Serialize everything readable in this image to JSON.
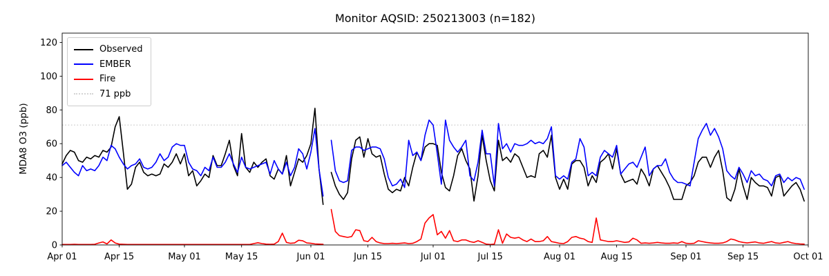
{
  "figure": {
    "title": "Monitor AQSID: 250213003 (n=182)",
    "ylabel": "MDA8 O3 (ppb)",
    "background": "#ffffff"
  },
  "legend": {
    "position": "upper-left",
    "items": [
      {
        "label": "Observed",
        "color": "#000000",
        "style": "solid"
      },
      {
        "label": "EMBER",
        "color": "#0000ff",
        "style": "solid"
      },
      {
        "label": "Fire",
        "color": "#ff0000",
        "style": "solid"
      },
      {
        "label": "71 ppb",
        "color": "#d3d3d3",
        "style": "dotted"
      }
    ]
  },
  "chart_data": {
    "type": "line",
    "title": "Monitor AQSID: 250213003 (n=182)",
    "xlabel": "",
    "ylabel": "MDA8 O3 (ppb)",
    "ylim": [
      0,
      125.5
    ],
    "yticks": [
      0,
      20,
      40,
      60,
      80,
      100,
      120
    ],
    "grid": false,
    "legend_position": "upper left",
    "x_axis": {
      "unit": "day",
      "n_days": 183,
      "start_label": "Apr 01",
      "end_label": "Oct 01",
      "note": "daily values Apr 01 - Sep 30; Jun 05 missing, giving n=182 points and a visible line gap"
    },
    "xticks": [
      {
        "day": 0,
        "label": "Apr 01"
      },
      {
        "day": 14,
        "label": "Apr 15"
      },
      {
        "day": 30,
        "label": "May 01"
      },
      {
        "day": 44,
        "label": "May 15"
      },
      {
        "day": 61,
        "label": "Jun 01"
      },
      {
        "day": 75,
        "label": "Jun 15"
      },
      {
        "day": 91,
        "label": "Jul 01"
      },
      {
        "day": 105,
        "label": "Jul 15"
      },
      {
        "day": 122,
        "label": "Aug 01"
      },
      {
        "day": 136,
        "label": "Aug 15"
      },
      {
        "day": 153,
        "label": "Sep 01"
      },
      {
        "day": 167,
        "label": "Sep 15"
      },
      {
        "day": 183,
        "label": "Oct 01"
      }
    ],
    "threshold": {
      "value": 71,
      "label": "71 ppb",
      "color": "#d3d3d3",
      "style": "dotted"
    },
    "series": [
      {
        "name": "Observed",
        "color": "#000000",
        "values": [
          48,
          53,
          56,
          55,
          50,
          49,
          52,
          51,
          53,
          52,
          56,
          55,
          58,
          70,
          76,
          55,
          33,
          36,
          46,
          49,
          43,
          41,
          42,
          41,
          42,
          48,
          46,
          49,
          54,
          48,
          54,
          41,
          44,
          35,
          38,
          42,
          40,
          53,
          47,
          47,
          54,
          62,
          47,
          41,
          66,
          46,
          43,
          49,
          46,
          49,
          51,
          41,
          39,
          45,
          42,
          53,
          35,
          43,
          51,
          49,
          53,
          60,
          81,
          45,
          24,
          null,
          43,
          35,
          30,
          27,
          31,
          51,
          62,
          64,
          52,
          63,
          54,
          52,
          53,
          42,
          33,
          31,
          33,
          32,
          40,
          35,
          46,
          55,
          50,
          58,
          60,
          60,
          59,
          43,
          34,
          32,
          41,
          53,
          57,
          50,
          45,
          26,
          41,
          65,
          50,
          38,
          32,
          62,
          50,
          52,
          49,
          54,
          52,
          46,
          40,
          41,
          40,
          54,
          56,
          52,
          65,
          40,
          33,
          39,
          33,
          48,
          50,
          50,
          46,
          35,
          41,
          37,
          49,
          51,
          54,
          45,
          57,
          42,
          37,
          38,
          39,
          36,
          45,
          41,
          35,
          45,
          47,
          43,
          39,
          34,
          27,
          27,
          27,
          35,
          37,
          41,
          49,
          52,
          52,
          46,
          52,
          56,
          44,
          28,
          26,
          33,
          45,
          35,
          27,
          40,
          37,
          35,
          35,
          34,
          29,
          40,
          41,
          29,
          32,
          35,
          37,
          33,
          26
        ]
      },
      {
        "name": "EMBER",
        "color": "#0000ff",
        "values": [
          47,
          49,
          46,
          43,
          41,
          47,
          44,
          45,
          44,
          47,
          52,
          50,
          59,
          57,
          52,
          48,
          45,
          47,
          48,
          51,
          46,
          45,
          46,
          49,
          54,
          50,
          52,
          58,
          60,
          59,
          59,
          49,
          45,
          44,
          41,
          46,
          44,
          52,
          46,
          46,
          49,
          54,
          48,
          43,
          52,
          46,
          45,
          46,
          47,
          48,
          49,
          42,
          50,
          45,
          42,
          49,
          41,
          46,
          57,
          54,
          45,
          55,
          69,
          45,
          29,
          null,
          62,
          44,
          38,
          37,
          38,
          56,
          58,
          58,
          56,
          57,
          58,
          58,
          57,
          51,
          40,
          35,
          36,
          39,
          34,
          62,
          53,
          55,
          50,
          65,
          74,
          71,
          54,
          36,
          74,
          62,
          58,
          55,
          58,
          62,
          41,
          38,
          49,
          68,
          54,
          54,
          35,
          72,
          57,
          60,
          55,
          60,
          59,
          59,
          60,
          62,
          60,
          61,
          60,
          63,
          70,
          41,
          39,
          41,
          39,
          49,
          51,
          63,
          58,
          41,
          43,
          41,
          52,
          56,
          54,
          52,
          59,
          42,
          45,
          48,
          49,
          46,
          52,
          58,
          41,
          45,
          47,
          47,
          51,
          43,
          39,
          37,
          37,
          36,
          35,
          49,
          63,
          68,
          72,
          65,
          69,
          64,
          57,
          44,
          41,
          39,
          46,
          42,
          37,
          44,
          41,
          42,
          39,
          38,
          35,
          41,
          42,
          37,
          40,
          38,
          40,
          39,
          33
        ]
      },
      {
        "name": "Fire",
        "color": "#ff0000",
        "values": [
          0.3,
          0.3,
          0.3,
          0.4,
          0.3,
          0.3,
          0.3,
          0.3,
          0.4,
          1.2,
          1.8,
          0.6,
          3,
          1.2,
          0.5,
          0.4,
          0.3,
          0.3,
          0.3,
          0.3,
          0.3,
          0.3,
          0.3,
          0.3,
          0.3,
          0.3,
          0.3,
          0.3,
          0.3,
          0.3,
          0.3,
          0.3,
          0.3,
          0.3,
          0.3,
          0.3,
          0.3,
          0.3,
          0.3,
          0.3,
          0.3,
          0.3,
          0.3,
          0.3,
          0.3,
          0.3,
          0.3,
          0.8,
          1.3,
          0.8,
          0.5,
          0.4,
          0.5,
          2,
          7,
          1.5,
          1,
          1.2,
          2.8,
          2.5,
          1.2,
          1,
          0.6,
          0.5,
          0.4,
          null,
          21,
          8,
          5.5,
          5,
          4.5,
          5,
          9,
          8.5,
          2.5,
          2,
          4.5,
          2,
          1.2,
          0.8,
          0.8,
          1,
          0.8,
          1,
          1.2,
          0.8,
          1,
          2,
          3.5,
          13,
          16,
          18,
          6,
          8,
          4,
          8.5,
          2.5,
          2,
          3,
          3,
          2,
          1.5,
          2.5,
          1.5,
          0.5,
          0.3,
          0.5,
          9,
          1,
          6.5,
          4.5,
          4,
          4.5,
          3,
          2,
          3.5,
          2,
          2,
          2.5,
          5,
          2,
          1.5,
          1,
          0.8,
          2,
          4.5,
          5,
          4,
          3.5,
          2,
          1.5,
          16,
          3,
          2.5,
          2,
          2,
          2.5,
          2,
          1.5,
          1.8,
          4,
          3,
          1,
          1.2,
          1,
          1.2,
          1.5,
          1.2,
          1,
          1,
          1.2,
          1,
          2,
          1,
          0.8,
          1,
          2.5,
          2,
          1.5,
          1.2,
          1,
          1,
          1.2,
          2,
          3.5,
          3,
          2,
          1.5,
          1.2,
          1.5,
          1.8,
          1.2,
          1,
          1.5,
          2,
          1.2,
          1,
          1.5,
          2,
          1.2,
          0.8,
          0.6,
          0.5
        ]
      }
    ]
  }
}
